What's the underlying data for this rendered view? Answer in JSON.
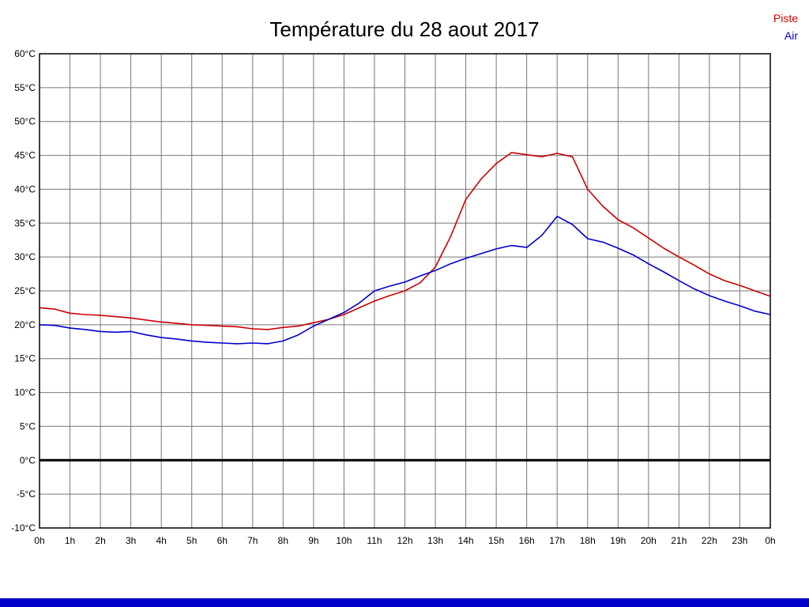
{
  "title": "Température du 28 aout 2017",
  "legend": {
    "items": [
      {
        "label": "Piste",
        "color": "#cc0000"
      },
      {
        "label": "Air",
        "color": "#0000cc"
      }
    ]
  },
  "footer": {
    "bar_color": "#0000cc"
  },
  "chart_data": {
    "type": "line",
    "title": "Température du 28 aout 2017",
    "xlabel": "",
    "ylabel": "",
    "xlim": [
      0,
      24
    ],
    "ylim": [
      -10,
      60
    ],
    "grid": true,
    "grid_color": "#777777",
    "border_color": "#000000",
    "zero_line": {
      "value": 0,
      "color": "#000000",
      "width": 3
    },
    "x_tick_values": [
      0,
      1,
      2,
      3,
      4,
      5,
      6,
      7,
      8,
      9,
      10,
      11,
      12,
      13,
      14,
      15,
      16,
      17,
      18,
      19,
      20,
      21,
      22,
      23,
      24
    ],
    "x_tick_labels": [
      "0h",
      "1h",
      "2h",
      "3h",
      "4h",
      "5h",
      "6h",
      "7h",
      "8h",
      "9h",
      "10h",
      "11h",
      "12h",
      "13h",
      "14h",
      "15h",
      "16h",
      "17h",
      "18h",
      "19h",
      "20h",
      "21h",
      "22h",
      "23h",
      "0h"
    ],
    "y_tick_values": [
      60,
      55,
      50,
      45,
      40,
      35,
      30,
      25,
      20,
      15,
      10,
      5,
      0,
      -5,
      -10
    ],
    "y_tick_labels": [
      "60°C",
      "55°C",
      "50°C",
      "45°C",
      "40°C",
      "35°C",
      "30°C",
      "25°C",
      "20°C",
      "15°C",
      "10°C",
      "5°C",
      "0°C",
      "-5°C",
      "-10°C"
    ],
    "x": [
      0,
      0.5,
      1,
      1.5,
      2,
      2.5,
      3,
      3.5,
      4,
      4.5,
      5,
      5.5,
      6,
      6.5,
      7,
      7.5,
      8,
      8.5,
      9,
      9.5,
      10,
      10.5,
      11,
      11.5,
      12,
      12.5,
      13,
      13.5,
      14,
      14.5,
      15,
      15.5,
      16,
      16.5,
      17,
      17.5,
      18,
      18.5,
      19,
      19.5,
      20,
      20.5,
      21,
      21.5,
      22,
      22.5,
      23,
      23.5,
      24
    ],
    "series": [
      {
        "name": "Piste",
        "color": "#cc0000",
        "values": [
          22.5,
          22.3,
          21.7,
          21.5,
          21.4,
          21.2,
          21.0,
          20.7,
          20.4,
          20.2,
          20.0,
          19.9,
          19.8,
          19.7,
          19.4,
          19.3,
          19.6,
          19.8,
          20.3,
          20.8,
          21.5,
          22.5,
          23.5,
          24.3,
          25.0,
          26.2,
          28.5,
          33.0,
          38.5,
          41.5,
          43.8,
          45.4,
          45.1,
          44.8,
          45.3,
          44.8,
          40.0,
          37.5,
          35.5,
          34.3,
          32.8,
          31.3,
          30.0,
          28.8,
          27.5,
          26.5,
          25.8,
          25.0,
          24.2
        ]
      },
      {
        "name": "Air",
        "color": "#0000cc",
        "values": [
          20.0,
          19.9,
          19.5,
          19.3,
          19.0,
          18.9,
          19.0,
          18.5,
          18.1,
          17.9,
          17.6,
          17.4,
          17.3,
          17.2,
          17.3,
          17.2,
          17.6,
          18.5,
          19.8,
          20.8,
          21.8,
          23.2,
          25.0,
          25.7,
          26.3,
          27.2,
          28.0,
          29.0,
          29.8,
          30.5,
          31.2,
          31.7,
          31.4,
          33.2,
          36.0,
          34.8,
          32.7,
          32.2,
          31.3,
          30.3,
          29.0,
          27.8,
          26.5,
          25.3,
          24.3,
          23.5,
          22.8,
          22.0,
          21.5
        ]
      }
    ]
  }
}
